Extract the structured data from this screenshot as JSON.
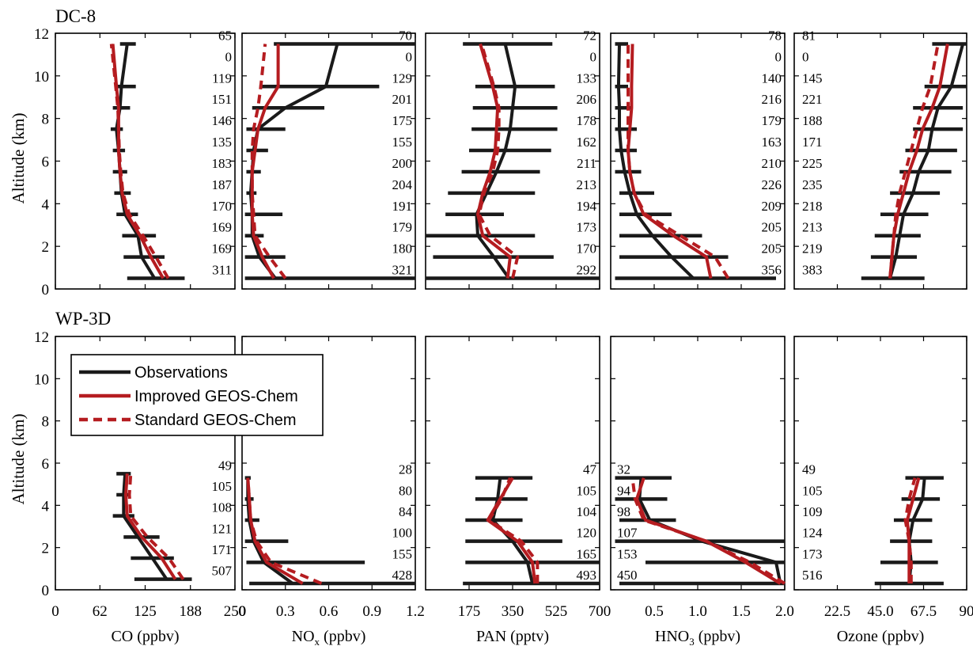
{
  "figure": {
    "row_titles": [
      "DC-8",
      "WP-3D"
    ],
    "ylabel": "Altitude (km)",
    "ylim": [
      0,
      12
    ],
    "yticks": [
      0,
      2,
      4,
      6,
      8,
      10,
      12
    ],
    "colors": {
      "observations": "#1a1a1a",
      "improved": "#b51c20",
      "standard": "#b51c20"
    },
    "legend": {
      "placement": "upper-left of WP-3D CO panel",
      "entries": [
        {
          "key": "observations",
          "label": "Observations",
          "style": "solid"
        },
        {
          "key": "improved",
          "label": "Improved GEOS-Chem",
          "style": "solid"
        },
        {
          "key": "standard",
          "label": "Standard GEOS-Chem",
          "style": "dashed"
        }
      ]
    },
    "columns": [
      {
        "xlabel_main": "CO (ppbv)",
        "xlabel_sub": "",
        "xlabel_tail": "",
        "xlim": [
          0,
          250
        ],
        "xticks": [
          0,
          62,
          125,
          188,
          250
        ]
      },
      {
        "xlabel_main": "NO",
        "xlabel_sub": "x",
        "xlabel_tail": " (ppbv)",
        "xlim": [
          0,
          1.2
        ],
        "xticks": [
          0,
          0.3,
          0.6,
          0.9,
          1.2
        ]
      },
      {
        "xlabel_main": "PAN (pptv)",
        "xlabel_sub": "",
        "xlabel_tail": "",
        "xlim": [
          0,
          700
        ],
        "xticks": [
          175,
          350,
          525,
          700
        ]
      },
      {
        "xlabel_main": "HNO",
        "xlabel_sub": "3",
        "xlabel_tail": " (ppbv)",
        "xlim": [
          0,
          2.0
        ],
        "xticks": [
          0.5,
          1.0,
          1.5,
          2.0
        ]
      },
      {
        "xlabel_main": "Ozone (ppbv)",
        "xlabel_sub": "",
        "xlabel_tail": "",
        "xlim": [
          0,
          90
        ],
        "xticks": [
          22.5,
          45.0,
          67.5,
          90
        ]
      }
    ]
  },
  "chart_data": [
    {
      "type": "line",
      "row": "DC-8",
      "column": "CO",
      "altitudes": [
        0.5,
        1.5,
        2.5,
        3.5,
        4.5,
        5.5,
        6.5,
        7.5,
        8.5,
        9.5,
        10.5,
        11.5
      ],
      "counts": [
        "311",
        "169",
        "169",
        "170",
        "187",
        "183",
        "135",
        "146",
        "151",
        "119",
        "0",
        "65"
      ],
      "observations": [
        138,
        120,
        115,
        97,
        92,
        90,
        88,
        85,
        90,
        92,
        null,
        100
      ],
      "obs_error": [
        [
          100,
          180
        ],
        [
          95,
          152
        ],
        [
          93,
          140
        ],
        [
          85,
          115
        ],
        [
          82,
          105
        ],
        [
          80,
          100
        ],
        [
          80,
          97
        ],
        [
          77,
          94
        ],
        [
          80,
          104
        ],
        [
          83,
          112
        ],
        null,
        [
          90,
          112
        ]
      ],
      "improved": [
        150,
        133,
        118,
        100,
        93,
        90,
        88,
        88,
        88,
        85,
        null,
        80
      ],
      "standard": [
        157,
        140,
        122,
        103,
        94,
        91,
        89,
        88,
        87,
        84,
        null,
        78
      ]
    },
    {
      "type": "line",
      "row": "DC-8",
      "column": "NOx",
      "altitudes": [
        0.5,
        1.5,
        2.5,
        3.5,
        4.5,
        5.5,
        6.5,
        7.5,
        8.5,
        9.5,
        10.5,
        11.5
      ],
      "counts": [
        "321",
        "180",
        "179",
        "191",
        "204",
        "200",
        "155",
        "175",
        "201",
        "129",
        "0",
        "70"
      ],
      "observations": [
        0.23,
        0.12,
        0.07,
        0.07,
        0.06,
        0.07,
        0.08,
        0.11,
        0.3,
        0.58,
        null,
        0.66
      ],
      "obs_error": [
        [
          0.02,
          1.2
        ],
        [
          0.02,
          0.3
        ],
        [
          0.02,
          0.15
        ],
        [
          0.02,
          0.28
        ],
        [
          0.03,
          0.1
        ],
        [
          0.03,
          0.13
        ],
        [
          0.03,
          0.18
        ],
        [
          0.03,
          0.3
        ],
        [
          0.07,
          0.57
        ],
        [
          0.12,
          0.95
        ],
        null,
        [
          0.22,
          1.2
        ]
      ],
      "improved": [
        0.22,
        0.14,
        0.08,
        0.07,
        0.07,
        0.07,
        0.09,
        0.11,
        0.16,
        0.25,
        null,
        0.25
      ],
      "standard": [
        0.3,
        0.19,
        0.09,
        0.08,
        0.07,
        0.07,
        0.07,
        0.08,
        0.11,
        0.13,
        null,
        0.16
      ]
    },
    {
      "type": "line",
      "row": "DC-8",
      "column": "PAN",
      "altitudes": [
        0.5,
        1.5,
        2.5,
        3.5,
        4.5,
        5.5,
        6.5,
        7.5,
        8.5,
        9.5,
        10.5,
        11.5
      ],
      "counts": [
        "292",
        "170",
        "173",
        "194",
        "213",
        "211",
        "162",
        "178",
        "206",
        "133",
        "0",
        "72"
      ],
      "observations": [
        335,
        275,
        210,
        205,
        245,
        285,
        320,
        340,
        350,
        360,
        null,
        320
      ],
      "obs_error": [
        [
          0,
          700
        ],
        [
          30,
          515
        ],
        [
          0,
          440
        ],
        [
          80,
          315
        ],
        [
          90,
          440
        ],
        [
          145,
          460
        ],
        [
          175,
          505
        ],
        [
          185,
          530
        ],
        [
          190,
          530
        ],
        [
          200,
          520
        ],
        null,
        [
          150,
          510
        ]
      ],
      "improved": [
        330,
        340,
        230,
        210,
        230,
        260,
        280,
        285,
        290,
        270,
        null,
        220
      ],
      "standard": [
        350,
        370,
        260,
        215,
        235,
        270,
        290,
        295,
        295,
        275,
        null,
        225
      ]
    },
    {
      "type": "line",
      "row": "DC-8",
      "column": "HNO3",
      "altitudes": [
        0.5,
        1.5,
        2.5,
        3.5,
        4.5,
        5.5,
        6.5,
        7.5,
        8.5,
        9.5,
        10.5,
        11.5
      ],
      "counts": [
        "356",
        "205",
        "205",
        "209",
        "226",
        "210",
        "163",
        "179",
        "216",
        "140",
        "0",
        "78"
      ],
      "observations": [
        0.95,
        0.7,
        0.48,
        0.3,
        0.22,
        0.16,
        0.12,
        0.1,
        0.1,
        0.09,
        null,
        0.1
      ],
      "obs_error": [
        [
          0.05,
          1.9
        ],
        [
          0.1,
          1.35
        ],
        [
          0.1,
          1.05
        ],
        [
          0.1,
          0.7
        ],
        [
          0.1,
          0.5
        ],
        [
          0.05,
          0.35
        ],
        [
          0.05,
          0.3
        ],
        [
          0.05,
          0.3
        ],
        [
          0.05,
          0.25
        ],
        [
          0.05,
          0.2
        ],
        null,
        [
          0.05,
          0.2
        ]
      ],
      "improved": [
        1.15,
        1.1,
        0.72,
        0.38,
        0.27,
        0.22,
        0.2,
        0.22,
        0.24,
        0.24,
        null,
        0.25
      ],
      "standard": [
        1.35,
        1.2,
        0.8,
        0.4,
        0.27,
        0.22,
        0.2,
        0.2,
        0.2,
        0.2,
        null,
        0.2
      ]
    },
    {
      "type": "line",
      "row": "DC-8",
      "column": "Ozone",
      "altitudes": [
        0.5,
        1.5,
        2.5,
        3.5,
        4.5,
        5.5,
        6.5,
        7.5,
        8.5,
        9.5,
        10.5,
        11.5
      ],
      "counts": [
        "383",
        "219",
        "213",
        "218",
        "235",
        "225",
        "171",
        "188",
        "221",
        "145",
        "0",
        "81"
      ],
      "observations": [
        50,
        53,
        55,
        57,
        62,
        65,
        70,
        72,
        75,
        82,
        null,
        88
      ],
      "obs_error": [
        [
          35,
          68
        ],
        [
          40,
          64
        ],
        [
          42,
          66
        ],
        [
          45,
          70
        ],
        [
          50,
          76
        ],
        [
          55,
          82
        ],
        [
          58,
          85
        ],
        [
          62,
          88
        ],
        [
          62,
          88
        ],
        [
          68,
          90
        ],
        null,
        [
          72,
          90
        ]
      ],
      "improved": [
        50,
        51,
        52,
        54,
        57,
        60,
        64,
        67,
        72,
        76,
        null,
        80
      ],
      "standard": [
        50,
        51,
        52,
        53,
        55,
        58,
        61,
        64,
        67,
        71,
        null,
        75
      ]
    },
    {
      "type": "line",
      "row": "WP-3D",
      "column": "CO",
      "altitudes": [
        0.5,
        1.5,
        2.5,
        3.5,
        4.5,
        5.5
      ],
      "counts": [
        "507",
        "171",
        "121",
        "108",
        "105",
        "49"
      ],
      "observations": [
        155,
        135,
        115,
        95,
        95,
        97
      ],
      "obs_error": [
        [
          110,
          190
        ],
        [
          105,
          165
        ],
        [
          95,
          145
        ],
        [
          80,
          110
        ],
        [
          85,
          105
        ],
        [
          85,
          105
        ]
      ],
      "improved": [
        167,
        148,
        120,
        100,
        98,
        100
      ],
      "standard": [
        178,
        158,
        128,
        105,
        103,
        105
      ]
    },
    {
      "type": "line",
      "row": "WP-3D",
      "column": "NOx",
      "altitudes": [
        0.3,
        1.3,
        2.3,
        3.3,
        4.3,
        5.3
      ],
      "counts": [
        "428",
        "155",
        "100",
        "84",
        "80",
        "28"
      ],
      "observations": [
        0.35,
        0.15,
        0.08,
        0.05,
        0.04,
        0.04
      ],
      "obs_error": [
        [
          0.05,
          1.2
        ],
        [
          0.03,
          0.85
        ],
        [
          0.02,
          0.32
        ],
        [
          0.02,
          0.12
        ],
        [
          0.02,
          0.08
        ],
        [
          0.02,
          0.06
        ]
      ],
      "improved": [
        0.42,
        0.17,
        0.09,
        0.06,
        0.05,
        0.04
      ],
      "standard": [
        0.55,
        0.2,
        0.1,
        0.06,
        0.05,
        0.04
      ]
    },
    {
      "type": "line",
      "row": "WP-3D",
      "column": "PAN",
      "altitudes": [
        0.3,
        1.3,
        2.3,
        3.3,
        4.3,
        5.3
      ],
      "counts": [
        "493",
        "165",
        "120",
        "104",
        "105",
        "47"
      ],
      "observations": [
        430,
        410,
        350,
        270,
        290,
        300
      ],
      "obs_error": [
        [
          150,
          700
        ],
        [
          160,
          700
        ],
        [
          160,
          550
        ],
        [
          160,
          390
        ],
        [
          200,
          410
        ],
        [
          200,
          430
        ]
      ],
      "improved": [
        440,
        430,
        370,
        250,
        300,
        350
      ],
      "standard": [
        450,
        450,
        385,
        255,
        305,
        340
      ]
    },
    {
      "type": "line",
      "row": "WP-3D",
      "column": "HNO3",
      "altitudes": [
        0.3,
        1.3,
        2.3,
        3.3,
        4.3,
        5.3
      ],
      "counts": [
        "450",
        "153",
        "107",
        "98",
        "94",
        "32"
      ],
      "observations": [
        1.95,
        1.9,
        1.05,
        0.45,
        0.33,
        0.35
      ],
      "obs_error": [
        [
          0.1,
          2.0
        ],
        [
          0.4,
          2.0
        ],
        [
          0.05,
          2.0
        ],
        [
          0.1,
          0.75
        ],
        [
          0.05,
          0.65
        ],
        [
          0.05,
          0.7
        ]
      ],
      "improved": [
        1.95,
        1.55,
        1.1,
        0.4,
        0.3,
        0.38
      ],
      "standard": [
        2.0,
        1.6,
        1.1,
        0.38,
        0.28,
        0.25
      ]
    },
    {
      "type": "line",
      "row": "WP-3D",
      "column": "Ozone",
      "altitudes": [
        0.3,
        1.3,
        2.3,
        3.3,
        4.3,
        5.3
      ],
      "counts": [
        "516",
        "173",
        "124",
        "109",
        "105",
        "49"
      ],
      "observations": [
        60,
        61,
        60,
        62,
        67,
        68
      ],
      "obs_error": [
        [
          42,
          78
        ],
        [
          45,
          75
        ],
        [
          50,
          72
        ],
        [
          52,
          72
        ],
        [
          56,
          76
        ],
        [
          58,
          78
        ]
      ],
      "improved": [
        60,
        60,
        60,
        59,
        62,
        65
      ],
      "standard": [
        61,
        61,
        60,
        58,
        60,
        63
      ]
    }
  ]
}
